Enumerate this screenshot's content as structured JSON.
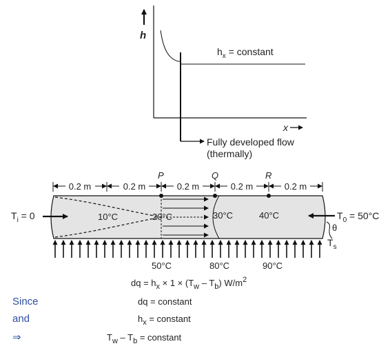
{
  "graph": {
    "y_axis_label": "h",
    "x_axis_label": "x",
    "curve_label_var": "h",
    "curve_label_sub": "x",
    "curve_label_rest": " = constant",
    "fully_developed_line1": "Fully developed flow",
    "fully_developed_line2": "(thermally)"
  },
  "pipe": {
    "points": [
      "P",
      "Q",
      "R"
    ],
    "segment_label": "0.2 m",
    "inlet_var": "T",
    "inlet_sub": "i",
    "inlet_rest": " = 0",
    "outlet_var": "T",
    "outlet_sub": "0",
    "outlet_rest": " = 50°C",
    "theta": "θ",
    "surface_var": "T",
    "surface_sub": "s",
    "fluid_temps": [
      "10°C",
      "20°C",
      "30°C",
      "40°C"
    ],
    "wall_temps": [
      "50°C",
      "80°C",
      "90°C"
    ]
  },
  "equations": {
    "eq1": {
      "lhs": "dq",
      "rhs": " = h",
      "sub": "x",
      "rest": " × 1 × (T",
      "w": "w",
      "minus": " – T",
      "b": "b",
      "tail": ") W/m",
      "sup": "2"
    },
    "eq2": {
      "side": "Since",
      "lhs": "dq",
      "rhs": " = constant"
    },
    "eq3": {
      "side": "and",
      "lhs": "h",
      "sub": "x",
      "rhs": " = constant"
    },
    "eq4": {
      "side": "⇒",
      "T1": "T",
      "s1": "w",
      "mid": " – T",
      "s2": "b",
      "rhs": " = constant"
    }
  }
}
